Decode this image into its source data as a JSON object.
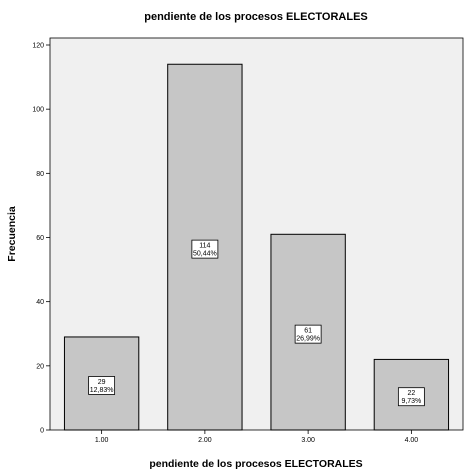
{
  "chart_data": {
    "type": "bar",
    "title": "pendiente  de los procesos ELECTORALES",
    "xlabel": "pendiente  de los procesos ELECTORALES",
    "ylabel": "Frecuencia",
    "categories": [
      "1.00",
      "2.00",
      "3.00",
      "4.00"
    ],
    "values": [
      29,
      114,
      61,
      22
    ],
    "percent_labels": [
      "12,83%",
      "50,44%",
      "26,99%",
      "9,73%"
    ],
    "ylim": [
      0,
      120
    ],
    "yticks": [
      "0",
      "20",
      "40",
      "60",
      "80",
      "100",
      "120"
    ],
    "grid": false,
    "legend": "none",
    "colors": {
      "plot_background": "#f0f0f0",
      "bar_fill": "#c6c6c6",
      "bar_stroke": "#000000",
      "label_box": "#ffffff"
    }
  }
}
